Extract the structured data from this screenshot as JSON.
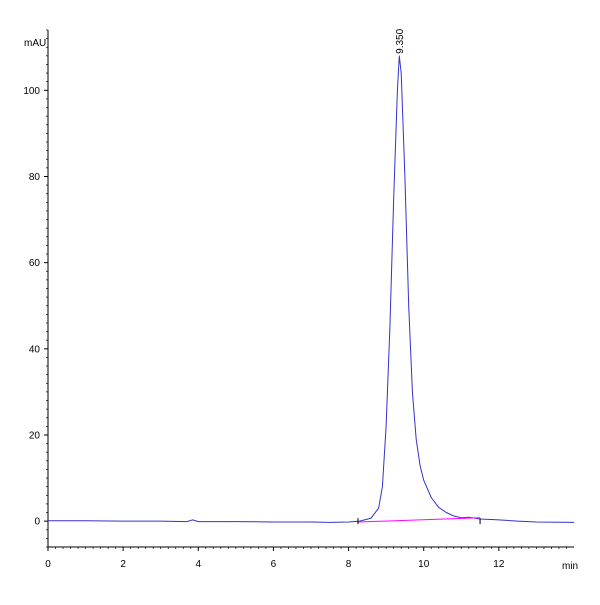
{
  "chart_data": {
    "type": "line",
    "y_unit_label": "mAU",
    "x_unit_label": "min",
    "xlim": [
      0,
      14.0
    ],
    "ylim": [
      -6,
      114
    ],
    "x_ticks": [
      0,
      2,
      4,
      6,
      8,
      10,
      12
    ],
    "y_ticks": [
      0,
      20,
      40,
      60,
      80,
      100
    ],
    "grid": false,
    "series": [
      {
        "color": "#3333cc",
        "x": [
          0,
          1,
          2,
          3,
          3.7,
          3.85,
          4,
          5,
          6,
          7,
          7.5,
          8,
          8.3,
          8.6,
          8.8,
          8.9,
          9.0,
          9.1,
          9.2,
          9.3,
          9.35,
          9.4,
          9.5,
          9.6,
          9.7,
          9.8,
          9.9,
          10.0,
          10.2,
          10.4,
          10.6,
          10.8,
          11.0,
          11.2,
          11.5,
          12,
          12.5,
          13,
          14.0
        ],
        "y": [
          0.1,
          0.1,
          0.0,
          0.0,
          -0.1,
          0.3,
          -0.1,
          -0.1,
          -0.2,
          -0.2,
          -0.3,
          -0.2,
          0.0,
          0.7,
          3.0,
          8.0,
          22.0,
          45.0,
          75.0,
          100.0,
          108.0,
          104.0,
          80.0,
          50.0,
          30.0,
          19.0,
          13.0,
          9.5,
          5.5,
          3.2,
          2.0,
          1.2,
          0.8,
          0.9,
          0.5,
          0.3,
          0.0,
          -0.2,
          -0.3
        ]
      },
      {
        "color": "#ff00ff",
        "x": [
          8.25,
          11.5
        ],
        "y": [
          -0.2,
          0.8
        ]
      }
    ],
    "annotations": [
      {
        "text": "9.350",
        "x": 9.35,
        "y": 108.0
      }
    ],
    "markers": [
      {
        "x": 8.25
      },
      {
        "x": 11.5
      }
    ]
  }
}
